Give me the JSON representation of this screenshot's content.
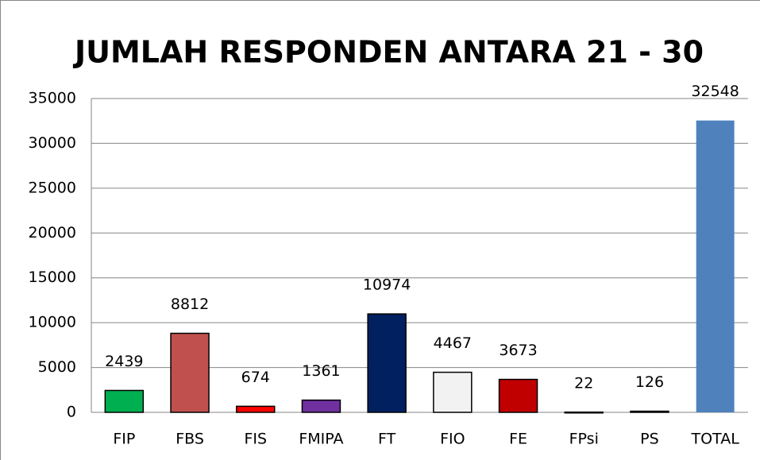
{
  "chart_data": {
    "type": "bar",
    "title": "JUMLAH RESPONDEN ANTARA 21 - 30",
    "categories": [
      "FIP",
      "FBS",
      "FIS",
      "FMIPA",
      "FT",
      "FIO",
      "FE",
      "FPsi",
      "PS",
      "TOTAL"
    ],
    "values": [
      2439,
      8812,
      674,
      1361,
      10974,
      4467,
      3673,
      22,
      126,
      32548
    ],
    "colors": [
      "#00b050",
      "#c0504d",
      "#ff0000",
      "#7030a0",
      "#002060",
      "#f2f2f2",
      "#c00000",
      "#ffffff",
      "#ffffff",
      "#4f81bd"
    ],
    "ylim": [
      0,
      35000
    ],
    "yticks": [
      0,
      5000,
      10000,
      15000,
      20000,
      25000,
      30000,
      35000
    ],
    "grid": true
  }
}
